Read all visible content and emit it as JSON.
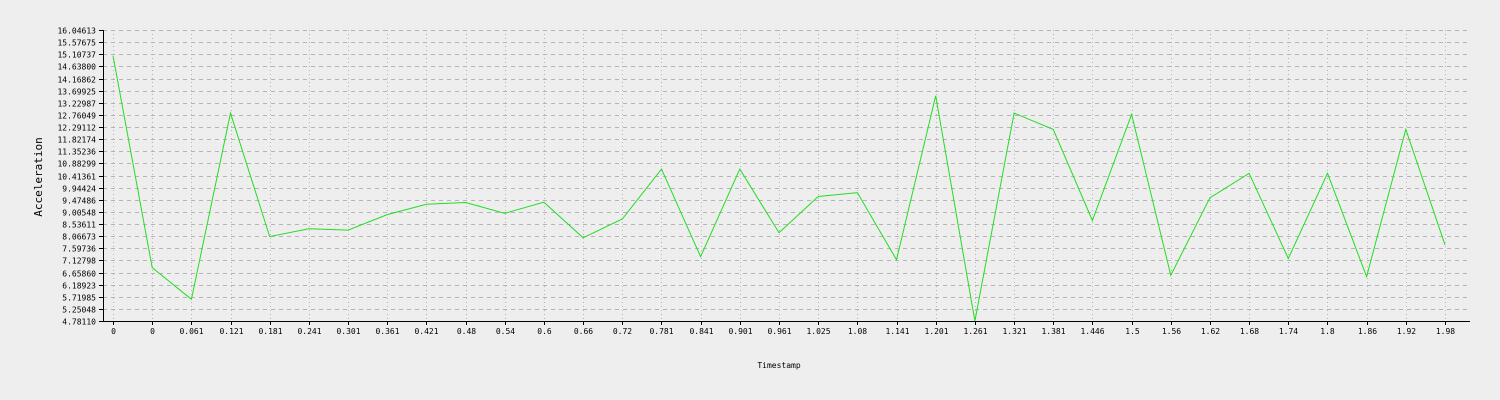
{
  "chart_data": {
    "type": "line",
    "title": "",
    "xlabel": "Timestamp",
    "ylabel": "Acceleration",
    "grid": true,
    "categories": [
      "0",
      "0",
      "0.061",
      "0.121",
      "0.181",
      "0.241",
      "0.301",
      "0.361",
      "0.421",
      "0.48",
      "0.54",
      "0.6",
      "0.66",
      "0.72",
      "0.781",
      "0.841",
      "0.901",
      "0.961",
      "1.025",
      "1.08",
      "1.141",
      "1.201",
      "1.261",
      "1.321",
      "1.381",
      "1.446",
      "1.5",
      "1.56",
      "1.62",
      "1.68",
      "1.74",
      "1.8",
      "1.86",
      "1.92",
      "1.98"
    ],
    "y_ticks": [
      "4.78110",
      "5.25048",
      "5.71985",
      "6.18923",
      "6.65860",
      "7.12798",
      "7.59736",
      "8.06673",
      "8.53611",
      "9.00548",
      "9.47486",
      "9.94424",
      "10.41361",
      "10.88299",
      "11.35236",
      "11.82174",
      "12.29112",
      "12.76049",
      "13.22987",
      "13.69925",
      "14.16862",
      "14.63800",
      "15.10737",
      "15.57675",
      "16.04613"
    ],
    "ylim": [
      4.7811,
      16.04613
    ],
    "series": [
      {
        "values": [
          15.05,
          6.85,
          5.62,
          12.83,
          8.05,
          8.35,
          8.3,
          8.9,
          9.3,
          9.37,
          8.95,
          9.38,
          8.0,
          8.73,
          10.66,
          7.27,
          10.66,
          8.2,
          9.6,
          9.75,
          7.15,
          13.5,
          4.78,
          12.83,
          12.2,
          8.67,
          12.78,
          6.55,
          9.55,
          10.5,
          7.2,
          10.5,
          6.5,
          12.2,
          7.73
        ],
        "color": "#22dd22"
      }
    ]
  }
}
